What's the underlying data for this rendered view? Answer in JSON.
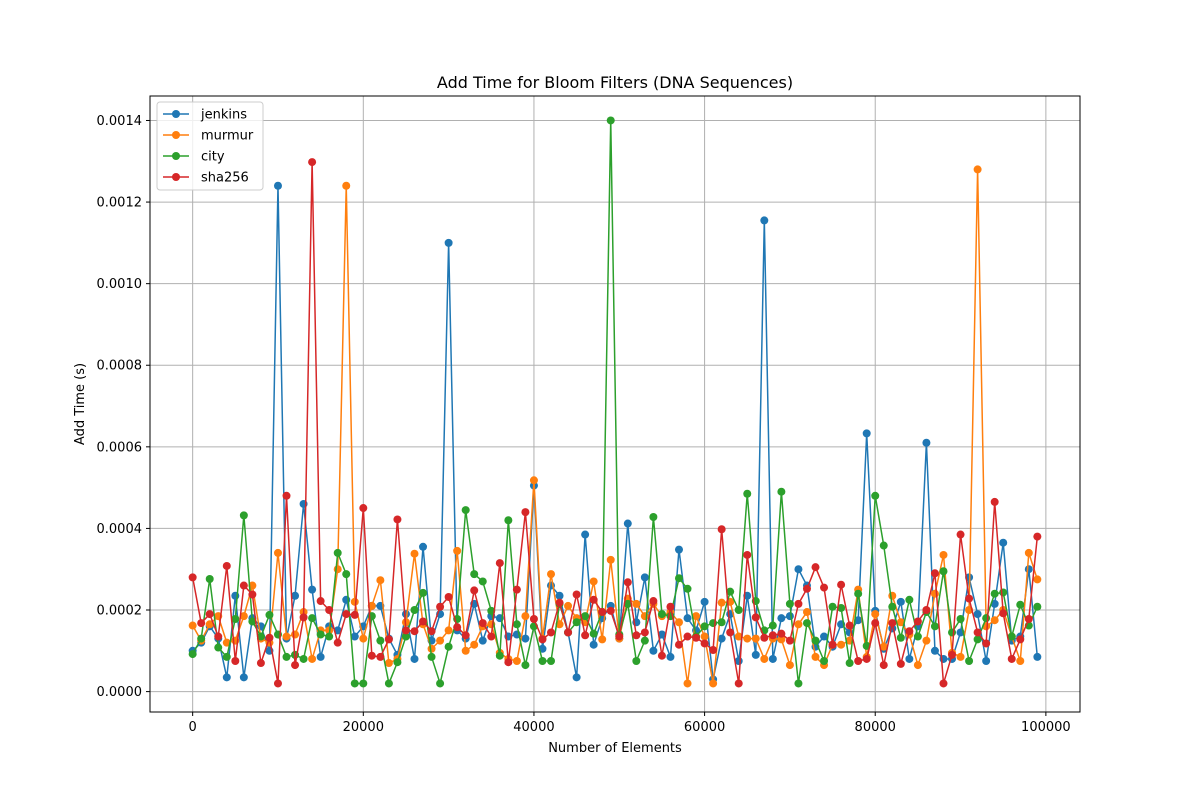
{
  "chart_data": {
    "type": "line",
    "title": "Add Time for Bloom Filters (DNA Sequences)",
    "xlabel": "Number of Elements",
    "ylabel": "Add Time (s)",
    "xlim": [
      -5000,
      104000
    ],
    "ylim": [
      -5e-05,
      0.00146
    ],
    "xticks": [
      0,
      20000,
      40000,
      60000,
      80000,
      100000
    ],
    "xtick_labels": [
      "0",
      "20000",
      "40000",
      "60000",
      "80000",
      "100000"
    ],
    "yticks": [
      0.0,
      0.0002,
      0.0004,
      0.0006,
      0.0008,
      0.001,
      0.0012,
      0.0014
    ],
    "ytick_labels": [
      "0.0000",
      "0.0002",
      "0.0004",
      "0.0006",
      "0.0008",
      "0.0010",
      "0.0012",
      "0.0014"
    ],
    "grid": true,
    "legend_position": "top-left",
    "markers": true,
    "x": [
      0,
      1000,
      2000,
      3000,
      4000,
      5000,
      6000,
      7000,
      8000,
      9000,
      10000,
      11000,
      12000,
      13000,
      14000,
      15000,
      16000,
      17000,
      18000,
      19000,
      20000,
      21000,
      22000,
      23000,
      24000,
      25000,
      26000,
      27000,
      28000,
      29000,
      30000,
      31000,
      32000,
      33000,
      34000,
      35000,
      36000,
      37000,
      38000,
      39000,
      40000,
      41000,
      42000,
      43000,
      44000,
      45000,
      46000,
      47000,
      48000,
      49000,
      50000,
      51000,
      52000,
      53000,
      54000,
      55000,
      56000,
      57000,
      58000,
      59000,
      60000,
      61000,
      62000,
      63000,
      64000,
      65000,
      66000,
      67000,
      68000,
      69000,
      70000,
      71000,
      72000,
      73000,
      74000,
      75000,
      76000,
      77000,
      78000,
      79000,
      80000,
      81000,
      82000,
      83000,
      84000,
      85000,
      86000,
      87000,
      88000,
      89000,
      90000,
      91000,
      92000,
      93000,
      94000,
      95000,
      96000,
      97000,
      98000,
      99000
    ],
    "series": [
      {
        "name": "jenkins",
        "color": "#1f77b4",
        "values": [
          0.0001,
          0.00012,
          0.00016,
          0.00013,
          3.5e-05,
          0.000235,
          3.5e-05,
          0.00018,
          0.00016,
          0.0001,
          0.00124,
          0.00013,
          0.000235,
          0.00046,
          0.00025,
          8.5e-05,
          0.00016,
          0.00015,
          0.000225,
          0.000135,
          0.00016,
          0.00021,
          0.00021,
          0.00013,
          9e-05,
          0.00019,
          8e-05,
          0.000355,
          0.000125,
          0.00019,
          0.0011,
          0.00015,
          0.00013,
          0.000215,
          0.000125,
          0.000185,
          0.00018,
          0.000135,
          0.00014,
          0.00013,
          0.000505,
          0.000105,
          0.00026,
          0.000235,
          0.000145,
          3.5e-05,
          0.000385,
          0.000115,
          0.00018,
          0.00021,
          0.00013,
          0.000412,
          0.00017,
          0.00028,
          0.0001,
          0.00014,
          8.5e-05,
          0.000348,
          0.00018,
          0.00015,
          0.00022,
          3e-05,
          0.00013,
          0.00019,
          7.5e-05,
          0.000235,
          9e-05,
          0.001155,
          8e-05,
          0.00018,
          0.000185,
          0.0003,
          0.00026,
          0.00011,
          0.000135,
          0.00011,
          0.000165,
          0.000145,
          0.000175,
          0.000633,
          0.000198,
          0.000105,
          0.000155,
          0.00022,
          8e-05,
          0.00016,
          0.00061,
          0.0001,
          8e-05,
          8e-05,
          0.000145,
          0.00028,
          0.00019,
          7.5e-05,
          0.000215,
          0.000365,
          0.000125,
          0.000135,
          0.0003,
          8.5e-05
        ]
      },
      {
        "name": "murmur",
        "color": "#ff7f0e",
        "values": [
          0.000162,
          0.000125,
          0.000165,
          0.000185,
          0.00012,
          0.000125,
          0.000185,
          0.00026,
          0.00013,
          0.00012,
          0.00034,
          0.000135,
          0.00014,
          0.000195,
          8e-05,
          0.00015,
          0.00015,
          0.0003,
          0.00124,
          0.00022,
          0.00013,
          0.00021,
          0.000273,
          7e-05,
          8e-05,
          0.00017,
          0.000338,
          0.000165,
          0.000105,
          0.000125,
          0.00015,
          0.000345,
          0.0001,
          0.000115,
          0.00016,
          0.000165,
          9.5e-05,
          8e-05,
          7.5e-05,
          0.000185,
          0.000518,
          0.00013,
          0.000288,
          0.000165,
          0.00021,
          0.00018,
          0.00017,
          0.00027,
          0.000128,
          0.000323,
          0.00013,
          0.000228,
          0.000215,
          0.000185,
          0.000215,
          0.000185,
          0.000195,
          0.00017,
          2e-05,
          0.000185,
          0.000135,
          2e-05,
          0.000218,
          0.00022,
          0.000135,
          0.00013,
          0.00013,
          8e-05,
          0.00013,
          0.000128,
          6.5e-05,
          0.000165,
          0.000195,
          8.5e-05,
          6.5e-05,
          0.000115,
          0.000115,
          0.000125,
          0.00025,
          8.5e-05,
          0.00019,
          0.00011,
          0.000235,
          0.00017,
          0.00014,
          6.5e-05,
          0.000125,
          0.00024,
          0.000335,
          9.5e-05,
          8.5e-05,
          0.0002,
          0.00128,
          0.00016,
          0.000175,
          0.0002,
          0.000135,
          7.5e-05,
          0.00034,
          0.000275
        ]
      },
      {
        "name": "city",
        "color": "#2ca02c",
        "values": [
          9.2e-05,
          0.00013,
          0.000276,
          0.000108,
          8.5e-05,
          0.000178,
          0.000432,
          0.000172,
          0.000135,
          0.000188,
          0.00014,
          8.5e-05,
          9e-05,
          8e-05,
          0.00018,
          0.00014,
          0.000135,
          0.00034,
          0.000288,
          2e-05,
          2e-05,
          0.000185,
          0.000125,
          2e-05,
          7.2e-05,
          0.000135,
          0.0002,
          0.000242,
          8.5e-05,
          2e-05,
          0.00011,
          0.000178,
          0.000445,
          0.000288,
          0.00027,
          0.000198,
          8.8e-05,
          0.00042,
          0.000165,
          6.5e-05,
          0.00016,
          7.5e-05,
          7.5e-05,
          0.000215,
          0.000145,
          0.00017,
          0.000185,
          0.000142,
          0.000195,
          0.0014,
          0.00014,
          0.000215,
          7.5e-05,
          0.000125,
          0.000428,
          0.00019,
          0.000185,
          0.000278,
          0.000252,
          0.000135,
          0.00016,
          0.000168,
          0.00017,
          0.000245,
          0.0002,
          0.000485,
          0.000222,
          0.00015,
          0.000162,
          0.00049,
          0.000215,
          2e-05,
          0.000168,
          0.000125,
          7.5e-05,
          0.000208,
          0.000205,
          7e-05,
          0.00024,
          0.000112,
          0.00048,
          0.000358,
          0.000208,
          0.000132,
          0.000225,
          0.000135,
          0.000195,
          0.00016,
          0.000295,
          0.000145,
          0.000178,
          7.5e-05,
          0.000128,
          0.00018,
          0.00024,
          0.000243,
          0.000135,
          0.000213,
          0.000162,
          0.000208
        ]
      },
      {
        "name": "sha256",
        "color": "#d62728",
        "values": [
          0.00028,
          0.000168,
          0.00019,
          0.000135,
          0.000308,
          7.5e-05,
          0.00026,
          0.000238,
          7e-05,
          0.000132,
          2e-05,
          0.00048,
          6.5e-05,
          0.000182,
          0.001298,
          0.000222,
          0.0002,
          0.00012,
          0.00019,
          0.000188,
          0.00045,
          8.8e-05,
          8.5e-05,
          0.000128,
          0.000422,
          0.00015,
          0.000148,
          0.000172,
          0.000148,
          0.000208,
          0.000232,
          0.000158,
          0.000138,
          0.000248,
          0.000168,
          0.000135,
          0.000315,
          7.2e-05,
          0.00025,
          0.00044,
          0.000178,
          0.000128,
          0.000145,
          0.000218,
          0.000145,
          0.000238,
          0.000138,
          0.000225,
          0.000195,
          0.000198,
          0.000135,
          0.000268,
          0.000138,
          0.000145,
          0.000222,
          8.8e-05,
          0.000208,
          0.000115,
          0.000135,
          0.000132,
          0.000118,
          0.000102,
          0.000398,
          0.000145,
          2e-05,
          0.000335,
          0.000182,
          0.000132,
          0.000138,
          0.000142,
          0.000125,
          0.000215,
          0.000252,
          0.000305,
          0.000255,
          0.000115,
          0.000262,
          0.000162,
          7.5e-05,
          8e-05,
          0.000168,
          6.5e-05,
          0.000168,
          6.8e-05,
          0.000148,
          0.000172,
          0.0002,
          0.00029,
          2e-05,
          9e-05,
          0.000385,
          0.000228,
          0.000145,
          0.000118,
          0.000465,
          0.000192,
          8e-05,
          0.000128,
          0.000178,
          0.00038
        ]
      }
    ]
  }
}
